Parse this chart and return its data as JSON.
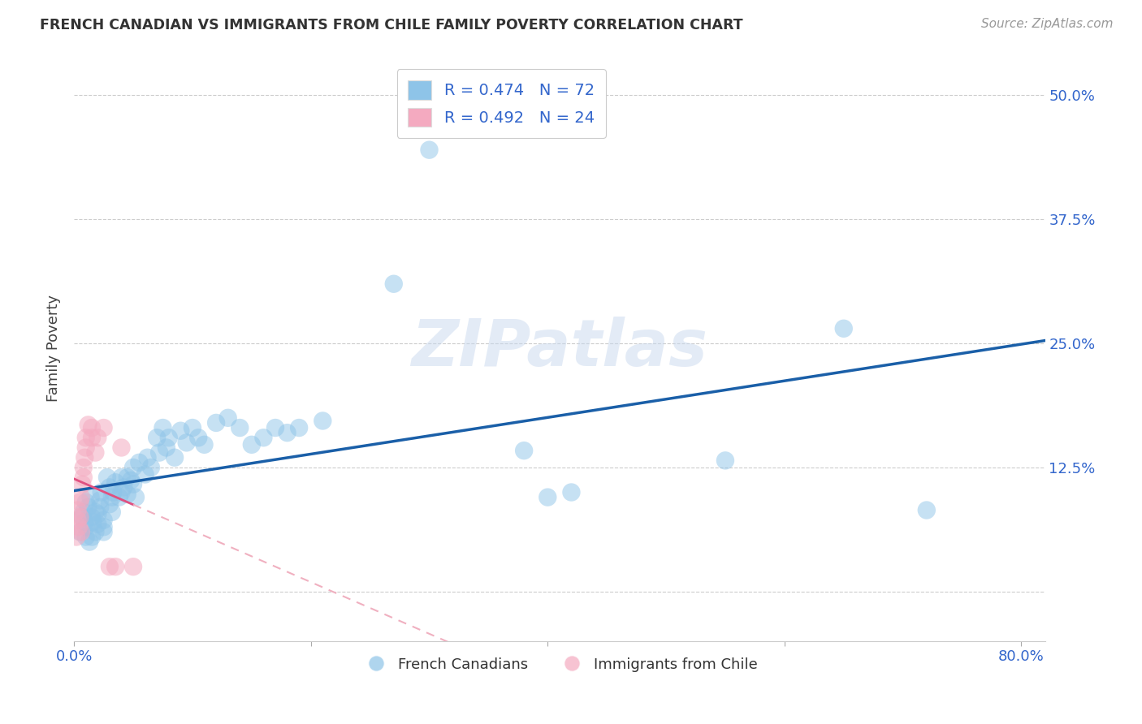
{
  "title": "FRENCH CANADIAN VS IMMIGRANTS FROM CHILE FAMILY POVERTY CORRELATION CHART",
  "source": "Source: ZipAtlas.com",
  "ylabel": "Family Poverty",
  "yticks": [
    0.0,
    0.125,
    0.25,
    0.375,
    0.5
  ],
  "ytick_labels": [
    "",
    "12.5%",
    "25.0%",
    "37.5%",
    "50.0%"
  ],
  "xlim": [
    0.0,
    0.82
  ],
  "ylim": [
    -0.05,
    0.54
  ],
  "watermark": "ZIPatlas",
  "legend_R1": "R = 0.474",
  "legend_N1": "N = 72",
  "legend_R2": "R = 0.492",
  "legend_N2": "N = 24",
  "blue_color": "#8ec4e8",
  "pink_color": "#f4aac0",
  "blue_line_color": "#1a5fa8",
  "pink_line_color": "#e05080",
  "pink_dash_color": "#f0b0c0",
  "blue_scatter": [
    [
      0.005,
      0.06
    ],
    [
      0.007,
      0.075
    ],
    [
      0.008,
      0.08
    ],
    [
      0.009,
      0.07
    ],
    [
      0.01,
      0.065
    ],
    [
      0.01,
      0.09
    ],
    [
      0.01,
      0.055
    ],
    [
      0.012,
      0.085
    ],
    [
      0.013,
      0.05
    ],
    [
      0.014,
      0.095
    ],
    [
      0.015,
      0.075
    ],
    [
      0.015,
      0.055
    ],
    [
      0.016,
      0.07
    ],
    [
      0.018,
      0.06
    ],
    [
      0.018,
      0.08
    ],
    [
      0.02,
      0.068
    ],
    [
      0.02,
      0.078
    ],
    [
      0.022,
      0.085
    ],
    [
      0.022,
      0.092
    ],
    [
      0.023,
      0.1
    ],
    [
      0.025,
      0.072
    ],
    [
      0.025,
      0.065
    ],
    [
      0.025,
      0.06
    ],
    [
      0.028,
      0.115
    ],
    [
      0.03,
      0.088
    ],
    [
      0.03,
      0.105
    ],
    [
      0.032,
      0.095
    ],
    [
      0.032,
      0.08
    ],
    [
      0.033,
      0.1
    ],
    [
      0.035,
      0.11
    ],
    [
      0.038,
      0.095
    ],
    [
      0.04,
      0.115
    ],
    [
      0.04,
      0.1
    ],
    [
      0.042,
      0.105
    ],
    [
      0.045,
      0.098
    ],
    [
      0.045,
      0.115
    ],
    [
      0.048,
      0.112
    ],
    [
      0.05,
      0.125
    ],
    [
      0.05,
      0.108
    ],
    [
      0.052,
      0.095
    ],
    [
      0.055,
      0.13
    ],
    [
      0.06,
      0.118
    ],
    [
      0.062,
      0.135
    ],
    [
      0.065,
      0.125
    ],
    [
      0.07,
      0.155
    ],
    [
      0.072,
      0.14
    ],
    [
      0.075,
      0.165
    ],
    [
      0.078,
      0.145
    ],
    [
      0.08,
      0.155
    ],
    [
      0.085,
      0.135
    ],
    [
      0.09,
      0.162
    ],
    [
      0.095,
      0.15
    ],
    [
      0.1,
      0.165
    ],
    [
      0.105,
      0.155
    ],
    [
      0.11,
      0.148
    ],
    [
      0.12,
      0.17
    ],
    [
      0.13,
      0.175
    ],
    [
      0.14,
      0.165
    ],
    [
      0.15,
      0.148
    ],
    [
      0.16,
      0.155
    ],
    [
      0.17,
      0.165
    ],
    [
      0.18,
      0.16
    ],
    [
      0.19,
      0.165
    ],
    [
      0.21,
      0.172
    ],
    [
      0.27,
      0.31
    ],
    [
      0.3,
      0.445
    ],
    [
      0.38,
      0.142
    ],
    [
      0.4,
      0.095
    ],
    [
      0.42,
      0.1
    ],
    [
      0.55,
      0.132
    ],
    [
      0.65,
      0.265
    ],
    [
      0.72,
      0.082
    ]
  ],
  "pink_scatter": [
    [
      0.002,
      0.055
    ],
    [
      0.003,
      0.072
    ],
    [
      0.003,
      0.082
    ],
    [
      0.004,
      0.065
    ],
    [
      0.005,
      0.09
    ],
    [
      0.005,
      0.075
    ],
    [
      0.006,
      0.06
    ],
    [
      0.006,
      0.095
    ],
    [
      0.007,
      0.108
    ],
    [
      0.008,
      0.115
    ],
    [
      0.008,
      0.125
    ],
    [
      0.009,
      0.135
    ],
    [
      0.01,
      0.145
    ],
    [
      0.01,
      0.155
    ],
    [
      0.012,
      0.168
    ],
    [
      0.015,
      0.155
    ],
    [
      0.015,
      0.165
    ],
    [
      0.018,
      0.14
    ],
    [
      0.02,
      0.155
    ],
    [
      0.025,
      0.165
    ],
    [
      0.03,
      0.025
    ],
    [
      0.035,
      0.025
    ],
    [
      0.04,
      0.145
    ],
    [
      0.05,
      0.025
    ]
  ]
}
